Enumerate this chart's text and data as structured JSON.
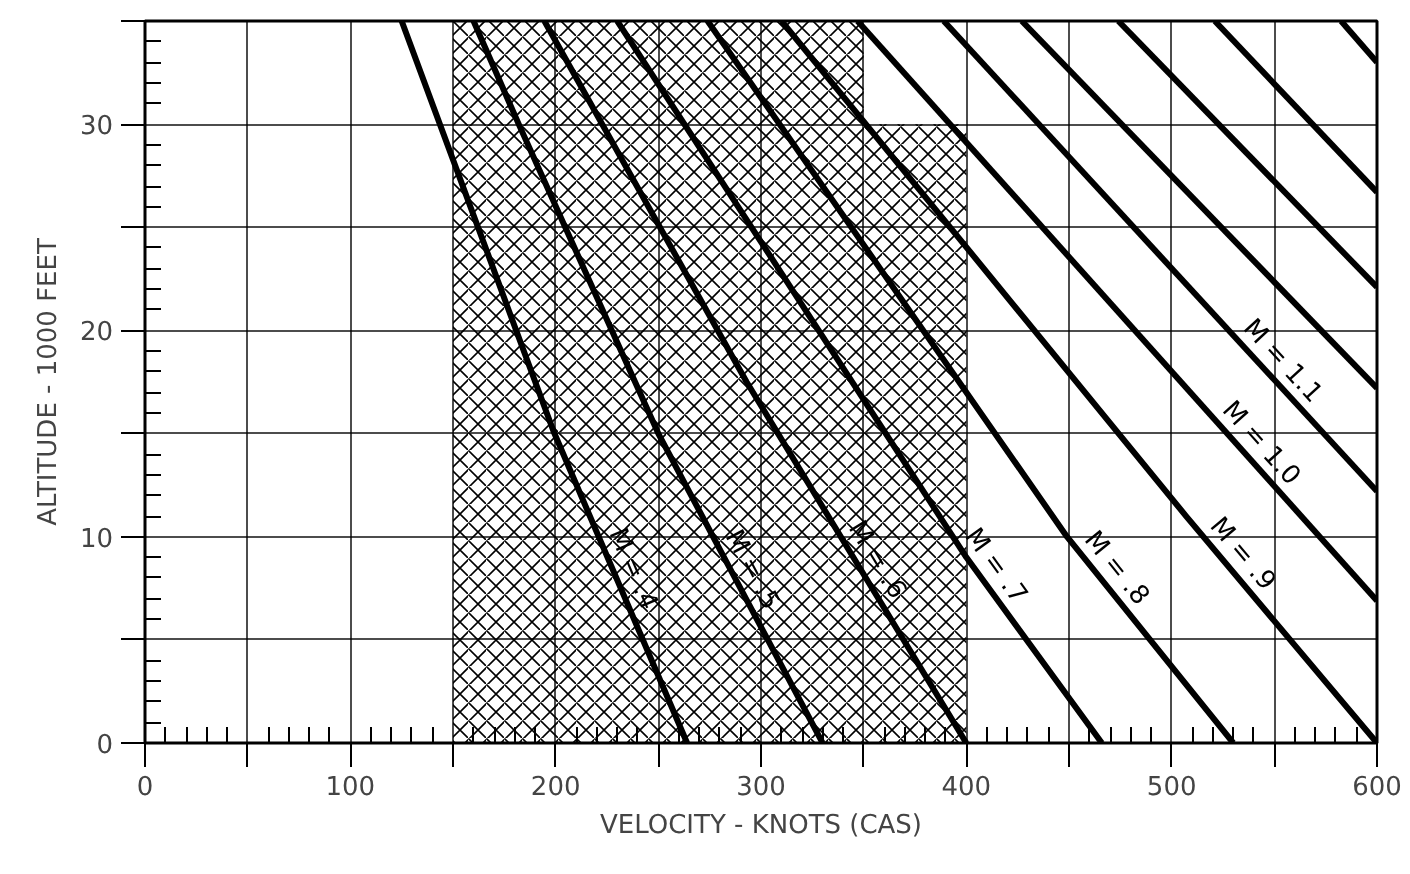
{
  "chart_data": {
    "type": "line",
    "xlabel": "VELOCITY - KNOTS (CAS)",
    "ylabel": "ALTITUDE - 1000 FEET",
    "xlim": [
      0,
      600
    ],
    "ylim": [
      0,
      35
    ],
    "xticks": [
      0,
      {
        "value": 50,
        "label": null
      },
      100,
      {
        "value": 150,
        "label": null
      },
      200,
      {
        "value": 250,
        "label": null
      },
      300,
      {
        "value": 350,
        "label": null
      },
      400,
      {
        "value": 450,
        "label": null
      },
      500,
      {
        "value": 550,
        "label": null
      },
      600
    ],
    "yticks": [
      0,
      {
        "value": 5,
        "label": null
      },
      10,
      {
        "value": 15,
        "label": null
      },
      20,
      {
        "value": 25,
        "label": null
      },
      30,
      {
        "value": 35,
        "label": null
      }
    ],
    "grid": true,
    "marker": "none",
    "line_style": "solid",
    "series": [
      {
        "type": "area",
        "color": "#000000",
        "x": [
          150,
          350,
          350,
          400
        ],
        "values": [
          35,
          35,
          30,
          30
        ]
      },
      {
        "name": "M = .4",
        "color": "#000000",
        "x": [
          125,
          199,
          264
        ],
        "values": [
          35,
          15.1,
          0
        ]
      },
      {
        "name": "M = .5",
        "color": "#000000",
        "x": [
          160,
          182,
          250,
          330
        ],
        "values": [
          35,
          30,
          15,
          0
        ]
      },
      {
        "name": "M = .6",
        "color": "#000000",
        "x": [
          194.5,
          293,
          400
        ],
        "values": [
          35,
          17.5,
          0
        ]
      },
      {
        "name": "M = .7",
        "color": "#000000",
        "x": [
          230,
          400,
          466
        ],
        "values": [
          35,
          9,
          0
        ]
      },
      {
        "name": "M = .8",
        "color": "#000000",
        "x": [
          274,
          449,
          530
        ],
        "values": [
          35,
          10,
          0
        ]
      },
      {
        "name": "M = .9",
        "color": "#000000",
        "x": [
          310,
          507,
          600
        ],
        "values": [
          35,
          11,
          0
        ]
      },
      {
        "name": "M = 1.0",
        "color": "#000000",
        "x": [
          347,
          600
        ],
        "values": [
          35,
          6.9
        ]
      },
      {
        "name": "M = 1.1",
        "color": "#000000",
        "x": [
          389,
          600
        ],
        "values": [
          35,
          12.2
        ]
      },
      {
        "color": "#000000",
        "x": [
          427,
          600
        ],
        "values": [
          35,
          17.2
        ]
      },
      {
        "color": "#000000",
        "x": [
          474,
          600
        ],
        "values": [
          35,
          22.1
        ]
      },
      {
        "color": "#000000",
        "x": [
          521,
          600
        ],
        "values": [
          35,
          26.7
        ]
      },
      {
        "color": "#000000",
        "x": [
          582.5,
          600
        ],
        "values": [
          35,
          33
        ]
      }
    ]
  }
}
